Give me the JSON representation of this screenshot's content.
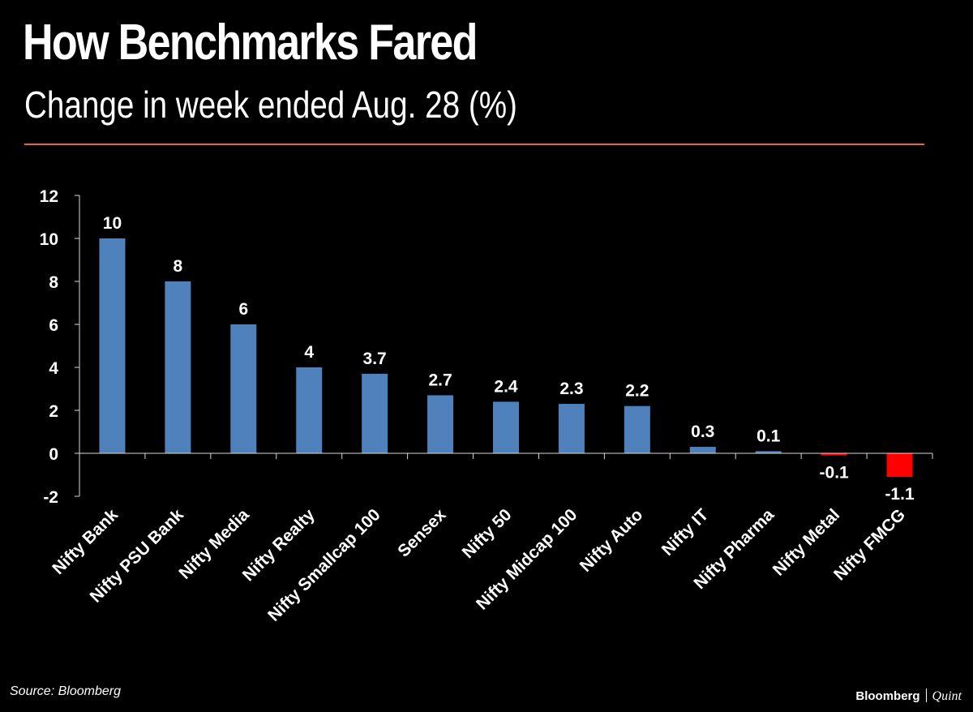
{
  "header": {
    "title": "How Benchmarks Fared",
    "subtitle": "Change in week ended Aug. 28 (%)"
  },
  "footer": {
    "source": "Source: Bloomberg",
    "brand_primary": "Bloomberg",
    "brand_secondary": "Quint"
  },
  "colors": {
    "positive_bar": "#4f81bd",
    "negative_bar": "#ff0000",
    "rule": "#e8682f",
    "background": "#000000",
    "text": "#ffffff"
  },
  "chart_data": {
    "type": "bar",
    "title": "How Benchmarks Fared",
    "subtitle": "Change in week ended Aug. 28 (%)",
    "xlabel": "",
    "ylabel": "",
    "categories": [
      "Nifty Bank",
      "Nifty PSU Bank",
      "Nifty Media",
      "Nifty Realty",
      "Nifty Smallcap 100",
      "Sensex",
      "Nifty 50",
      "Nifty Midcap 100",
      "Nifty Auto",
      "Nifty IT",
      "Nifty Pharma",
      "Nifty Metal",
      "Nifty FMCG"
    ],
    "values": [
      10,
      8,
      6,
      4,
      3.7,
      2.7,
      2.4,
      2.3,
      2.2,
      0.3,
      0.1,
      -0.1,
      -1.1
    ],
    "data_labels": [
      "10",
      "8",
      "6",
      "4",
      "3.7",
      "2.7",
      "2.4",
      "2.3",
      "2.2",
      "0.3",
      "0.1",
      "-0.1",
      "-1.1"
    ],
    "yticks": [
      12,
      10,
      8,
      6,
      4,
      2,
      0,
      -2
    ],
    "ylim": [
      -2,
      12
    ],
    "grid": false,
    "legend": "none"
  }
}
